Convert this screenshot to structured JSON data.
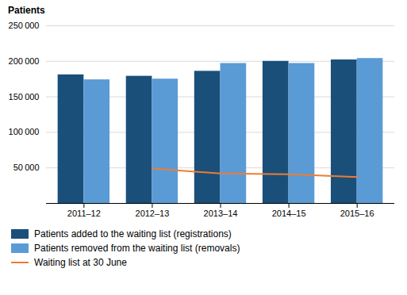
{
  "chart_data": {
    "type": "bar",
    "ylabel": "Patients",
    "categories": [
      "2011–12",
      "2012–13",
      "2013–14",
      "2014–15",
      "2015–16"
    ],
    "series": [
      {
        "name": "Patients added to the waiting list (registrations)",
        "type": "bar",
        "color": "#1A4F7A",
        "values": [
          181000,
          179000,
          186000,
          200000,
          202000
        ]
      },
      {
        "name": "Patients removed from the waiting list (removals)",
        "type": "bar",
        "color": "#5B9BD5",
        "values": [
          174000,
          175000,
          197000,
          197000,
          204000
        ]
      },
      {
        "name": "Waiting list at 30 June",
        "type": "line",
        "color": "#ED7D31",
        "values": [
          null,
          49000,
          42000,
          41000,
          37000
        ]
      }
    ],
    "ylim": [
      0,
      250000
    ],
    "yticks": [
      {
        "value": 0,
        "label": null
      },
      {
        "value": 50000,
        "label": "50 000"
      },
      {
        "value": 100000,
        "label": "100 000"
      },
      {
        "value": 150000,
        "label": "150 000"
      },
      {
        "value": 200000,
        "label": "200 000"
      },
      {
        "value": 250000,
        "label": "250 000"
      }
    ],
    "grid": true,
    "legend": "bottom"
  }
}
